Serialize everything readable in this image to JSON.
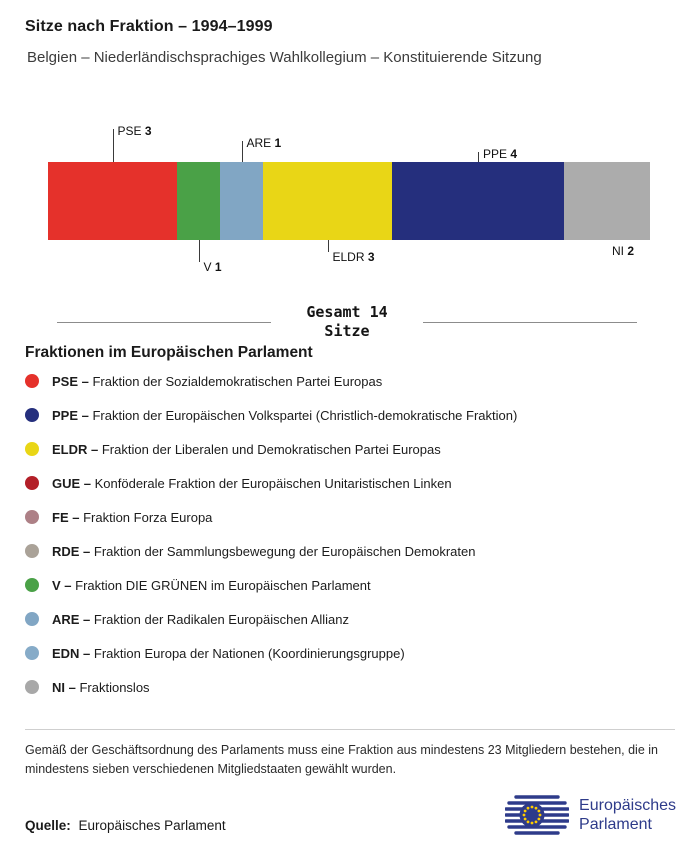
{
  "header": {
    "title": "Sitze nach Fraktion – 1994–1999",
    "subtitle": "Belgien – Niederländischsprachiges Wahlkollegium – Konstituierende Sitzung"
  },
  "chart_data": {
    "type": "bar",
    "variant": "stacked-horizontal-single-bar",
    "title": "Sitze nach Fraktion – 1994–1999",
    "subtitle": "Belgien – Niederländischsprachiges Wahlkollegium – Konstituierende Sitzung",
    "total_seats": 14,
    "total_label": "Gesamt 14 Sitze",
    "categories": [
      "PSE",
      "V",
      "ARE",
      "ELDR",
      "PPE",
      "NI"
    ],
    "values": [
      3,
      1,
      1,
      3,
      4,
      2
    ],
    "segments": [
      {
        "abbr": "PSE",
        "seats": 3,
        "color": "#e5312b",
        "label_position": "above",
        "line_length": 33,
        "show_line": true
      },
      {
        "abbr": "V",
        "seats": 1,
        "color": "#4aa147",
        "label_position": "below",
        "line_length": 22,
        "show_line": true
      },
      {
        "abbr": "ARE",
        "seats": 1,
        "color": "#81a6c4",
        "label_position": "above",
        "line_length": 21,
        "show_line": true
      },
      {
        "abbr": "ELDR",
        "seats": 3,
        "color": "#e9d616",
        "label_position": "below",
        "line_length": 12,
        "show_line": true
      },
      {
        "abbr": "PPE",
        "seats": 4,
        "color": "#252f7d",
        "label_position": "above",
        "line_length": 10,
        "show_line": true
      },
      {
        "abbr": "NI",
        "seats": 2,
        "color": "#acacac",
        "label_position": "below",
        "line_length": 6,
        "show_line": false
      }
    ]
  },
  "total": {
    "line1": "Gesamt 14",
    "line2": "Sitze"
  },
  "legend": {
    "heading": "Fraktionen im Europäischen Parlament",
    "separator": "–",
    "items": [
      {
        "abbr": "PSE",
        "name": "Fraktion der Sozialdemokratischen Partei Europas",
        "color": "#e5312b"
      },
      {
        "abbr": "PPE",
        "name": "Fraktion der Europäischen Volkspartei (Christlich-demokratische Fraktion)",
        "color": "#252f7d"
      },
      {
        "abbr": "ELDR",
        "name": "Fraktion der Liberalen und Demokratischen Partei Europas",
        "color": "#e9d616"
      },
      {
        "abbr": "GUE",
        "name": "Konföderale Fraktion der Europäischen Unitaristischen Linken",
        "color": "#b31f28"
      },
      {
        "abbr": "FE",
        "name": "Fraktion Forza Europa",
        "color": "#ad8086"
      },
      {
        "abbr": "RDE",
        "name": "Fraktion der Sammlungsbewegung der Europäischen Demokraten",
        "color": "#aaa298"
      },
      {
        "abbr": "V",
        "name": "Fraktion DIE GRÜNEN im Europäischen Parlament",
        "color": "#4aa147"
      },
      {
        "abbr": "ARE",
        "name": "Fraktion der Radikalen Europäischen Allianz",
        "color": "#81a6c4"
      },
      {
        "abbr": "EDN",
        "name": "Fraktion Europa der Nationen (Koordinierungsgruppe)",
        "color": "#86abc8"
      },
      {
        "abbr": "NI",
        "name": "Fraktionslos",
        "color": "#a8a8a8"
      }
    ]
  },
  "footnote": "Gemäß der Geschäftsordnung des Parlaments muss eine Fraktion aus mindestens 23 Mitgliedern bestehen, die in mindestens sieben verschiedenen Mitgliedstaaten gewählt wurden.",
  "source": {
    "label": "Quelle:",
    "text": "Europäisches Parlament"
  },
  "logo": {
    "line1": "Europäisches",
    "line2": "Parlament"
  }
}
